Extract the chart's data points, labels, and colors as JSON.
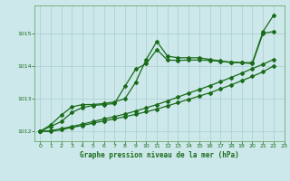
{
  "background_color": "#cce8ea",
  "grid_color": "#aacccc",
  "line_color": "#1a6b1a",
  "title": "Graphe pression niveau de la mer (hPa)",
  "xlim": [
    -0.5,
    23
  ],
  "ylim": [
    1011.7,
    1015.85
  ],
  "yticks": [
    1012,
    1013,
    1014,
    1015
  ],
  "xticks": [
    0,
    1,
    2,
    3,
    4,
    5,
    6,
    7,
    8,
    9,
    10,
    11,
    12,
    13,
    14,
    15,
    16,
    17,
    18,
    19,
    20,
    21,
    22,
    23
  ],
  "x": [
    0,
    1,
    2,
    3,
    4,
    5,
    6,
    7,
    8,
    9,
    10,
    11,
    12,
    13,
    14,
    15,
    16,
    17,
    18,
    19,
    20,
    21,
    22,
    23
  ],
  "line1_y": [
    1012.0,
    1012.15,
    1012.3,
    1012.58,
    1012.73,
    1012.79,
    1012.82,
    1012.85,
    1013.38,
    1013.9,
    1014.07,
    1014.5,
    1014.18,
    1014.17,
    1014.18,
    1014.18,
    1014.17,
    1014.14,
    1014.12,
    1014.1,
    1014.07,
    1015.0,
    1015.05,
    null
  ],
  "line2_y": [
    1012.0,
    1012.2,
    1012.5,
    1012.75,
    1012.82,
    1012.82,
    1012.85,
    1012.9,
    1013.0,
    1013.5,
    1014.2,
    1014.75,
    1014.3,
    1014.25,
    1014.25,
    1014.25,
    1014.2,
    1014.15,
    1014.1,
    1014.1,
    1014.1,
    1015.05,
    1015.55,
    null
  ],
  "line3_y": [
    1012.0,
    1012.0,
    1012.05,
    1012.12,
    1012.18,
    1012.25,
    1012.32,
    1012.38,
    1012.45,
    1012.52,
    1012.6,
    1012.68,
    1012.78,
    1012.88,
    1012.98,
    1013.08,
    1013.18,
    1013.3,
    1013.42,
    1013.55,
    1013.68,
    1013.82,
    1014.0,
    null
  ],
  "line4_y": [
    1012.0,
    1012.02,
    1012.08,
    1012.15,
    1012.22,
    1012.3,
    1012.38,
    1012.45,
    1012.53,
    1012.62,
    1012.72,
    1012.82,
    1012.93,
    1013.05,
    1013.17,
    1013.28,
    1013.4,
    1013.52,
    1013.65,
    1013.78,
    1013.92,
    1014.05,
    1014.2,
    null
  ]
}
